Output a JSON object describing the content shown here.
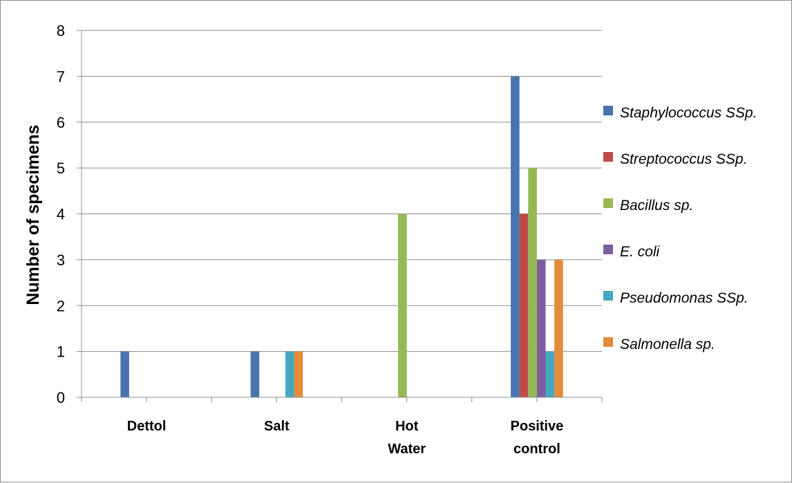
{
  "chart_data": {
    "type": "bar",
    "title": "",
    "xlabel": "",
    "ylabel": "Number of specimens",
    "ylim": [
      0,
      8
    ],
    "yticks": [
      "0",
      "1",
      "2",
      "3",
      "4",
      "5",
      "6",
      "7",
      "8"
    ],
    "grid": true,
    "legend_position": "right",
    "categories": [
      [
        "Dettol"
      ],
      [
        "Salt"
      ],
      [
        "Hot",
        "Water"
      ],
      [
        "Positive",
        "control"
      ]
    ],
    "series": [
      {
        "name": "Staphylococcus SSp.",
        "color": "#4a74ad",
        "values": [
          1,
          1,
          0,
          7
        ]
      },
      {
        "name": "Streptococcus SSp.",
        "color": "#bf4b48",
        "values": [
          0,
          0,
          0,
          4
        ]
      },
      {
        "name": "Bacillus sp.",
        "color": "#96b956",
        "values": [
          0,
          0,
          4,
          5
        ]
      },
      {
        "name": "E. coli",
        "color": "#7b5f9f",
        "values": [
          0,
          0,
          0,
          3
        ]
      },
      {
        "name": "Pseudomonas SSp.",
        "color": "#46a7c1",
        "values": [
          0,
          1,
          0,
          1
        ]
      },
      {
        "name": "Salmonella sp.",
        "color": "#e38c3c",
        "values": [
          0,
          1,
          0,
          3
        ]
      }
    ]
  }
}
